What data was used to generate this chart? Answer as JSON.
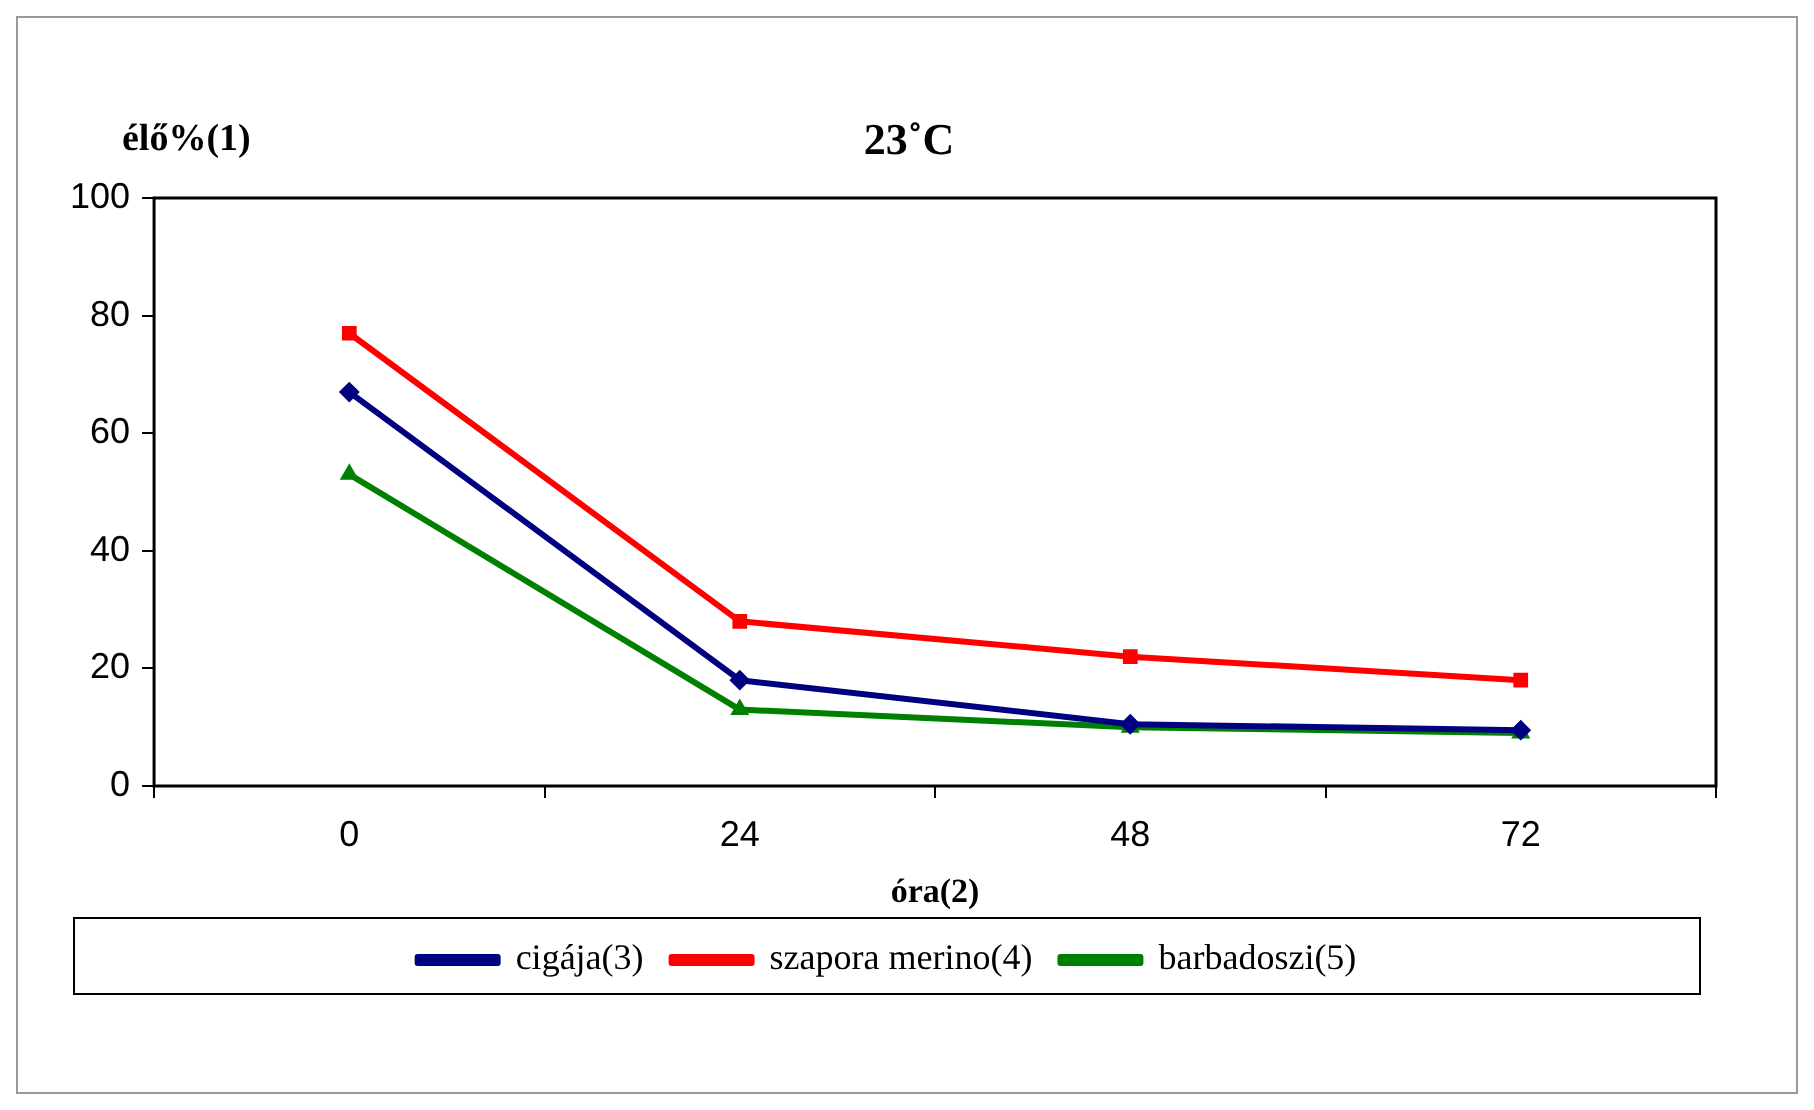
{
  "chart_data": {
    "type": "line",
    "title": "23˚C",
    "ylabel": "élő%(1)",
    "xlabel": "óra(2)",
    "categories": [
      "0",
      "24",
      "48",
      "72"
    ],
    "series": [
      {
        "name": "cigája(3)",
        "color": "#000080",
        "marker": "diamond",
        "values": [
          67,
          18,
          10.5,
          9.5
        ]
      },
      {
        "name": "szapora merino(4)",
        "color": "#ff0000",
        "marker": "square",
        "values": [
          77,
          28,
          22,
          18
        ]
      },
      {
        "name": "barbadoszi(5)",
        "color": "#008000",
        "marker": "triangle",
        "values": [
          53,
          13,
          10,
          9
        ]
      }
    ],
    "ylim": [
      0,
      100
    ],
    "yticks": [
      0,
      20,
      40,
      60,
      80,
      100
    ],
    "grid": false,
    "legend": "bottom",
    "line_style": "solid"
  }
}
